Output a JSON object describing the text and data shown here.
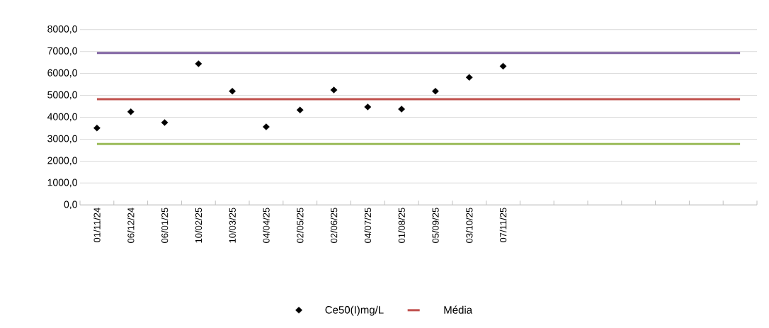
{
  "chart_data": {
    "type": "scatter",
    "categories": [
      "01/11/24",
      "06/12/24",
      "06/01/25",
      "10/02/25",
      "10/03/25",
      "04/04/25",
      "02/05/25",
      "02/06/25",
      "04/07/25",
      "01/08/25",
      "05/09/25",
      "03/10/25",
      "07/11/25",
      null,
      null,
      null,
      null,
      null,
      null,
      null
    ],
    "series": [
      {
        "name": "Ce50(I)mg/L",
        "color": "#000000",
        "marker": "diamond",
        "values": [
          3510,
          4250,
          3760,
          6440,
          5190,
          3560,
          4330,
          5240,
          4470,
          4370,
          5190,
          5820,
          6330,
          null,
          null,
          null,
          null,
          null,
          null,
          null
        ]
      },
      {
        "type": "line",
        "color": "#8064a2",
        "values": [
          6930,
          6930,
          6930,
          6930,
          6930,
          6930,
          6930,
          6930,
          6930,
          6930,
          6930,
          6930,
          6930,
          6930,
          6930,
          6930,
          6930,
          6930,
          6930,
          6930
        ]
      },
      {
        "type": "line",
        "name": "Média",
        "color": "#c0504d",
        "values": [
          4820,
          4820,
          4820,
          4820,
          4820,
          4820,
          4820,
          4820,
          4820,
          4820,
          4820,
          4820,
          4820,
          4820,
          4820,
          4820,
          4820,
          4820,
          4820,
          4820
        ]
      },
      {
        "type": "line",
        "color": "#9bbb59",
        "values": [
          2780,
          2780,
          2780,
          2780,
          2780,
          2780,
          2780,
          2780,
          2780,
          2780,
          2780,
          2780,
          2780,
          2780,
          2780,
          2780,
          2780,
          2780,
          2780,
          2780
        ]
      }
    ],
    "ylim": [
      0,
      8000
    ],
    "yticks": [
      {
        "value": 0,
        "label": "0,0"
      },
      {
        "value": 1000,
        "label": "1000,0"
      },
      {
        "value": 2000,
        "label": "2000,0"
      },
      {
        "value": 3000,
        "label": "3000,0"
      },
      {
        "value": 4000,
        "label": "4000,0"
      },
      {
        "value": 5000,
        "label": "5000,0"
      },
      {
        "value": 6000,
        "label": "6000,0"
      },
      {
        "value": 7000,
        "label": "7000,0"
      },
      {
        "value": 8000,
        "label": "8000,0"
      }
    ],
    "grid": "y",
    "legend": "bottom"
  }
}
